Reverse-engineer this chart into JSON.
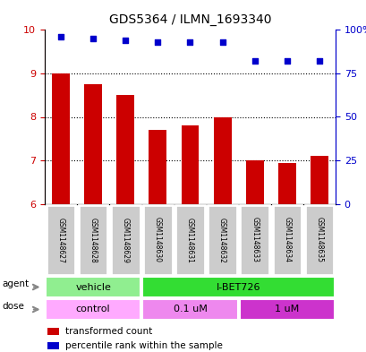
{
  "title": "GDS5364 / ILMN_1693340",
  "samples": [
    "GSM1148627",
    "GSM1148628",
    "GSM1148629",
    "GSM1148630",
    "GSM1148631",
    "GSM1148632",
    "GSM1148633",
    "GSM1148634",
    "GSM1148635"
  ],
  "transformed_count": [
    9.0,
    8.75,
    8.5,
    7.7,
    7.8,
    8.0,
    7.0,
    6.95,
    7.1
  ],
  "percentile_rank": [
    96,
    95,
    94,
    93,
    93,
    93,
    82,
    82,
    82
  ],
  "ylim_left": [
    6,
    10
  ],
  "ylim_right": [
    0,
    100
  ],
  "yticks_left": [
    6,
    7,
    8,
    9,
    10
  ],
  "yticks_right": [
    0,
    25,
    50,
    75,
    100
  ],
  "ytick_labels_right": [
    "0",
    "25",
    "50",
    "75",
    "100%"
  ],
  "bar_color": "#cc0000",
  "dot_color": "#0000cc",
  "bar_width": 0.55,
  "agent_labels": [
    {
      "text": "vehicle",
      "start": 0,
      "end": 3,
      "color": "#90ee90"
    },
    {
      "text": "I-BET726",
      "start": 3,
      "end": 9,
      "color": "#33dd33"
    }
  ],
  "dose_labels": [
    {
      "text": "control",
      "start": 0,
      "end": 3,
      "color": "#ffaaff"
    },
    {
      "text": "0.1 uM",
      "start": 3,
      "end": 6,
      "color": "#ee88ee"
    },
    {
      "text": "1 uM",
      "start": 6,
      "end": 9,
      "color": "#cc33cc"
    }
  ],
  "legend_red_label": "transformed count",
  "legend_blue_label": "percentile rank within the sample",
  "sample_box_color": "#cccccc",
  "left_axis_color": "#cc0000",
  "right_axis_color": "#0000cc"
}
